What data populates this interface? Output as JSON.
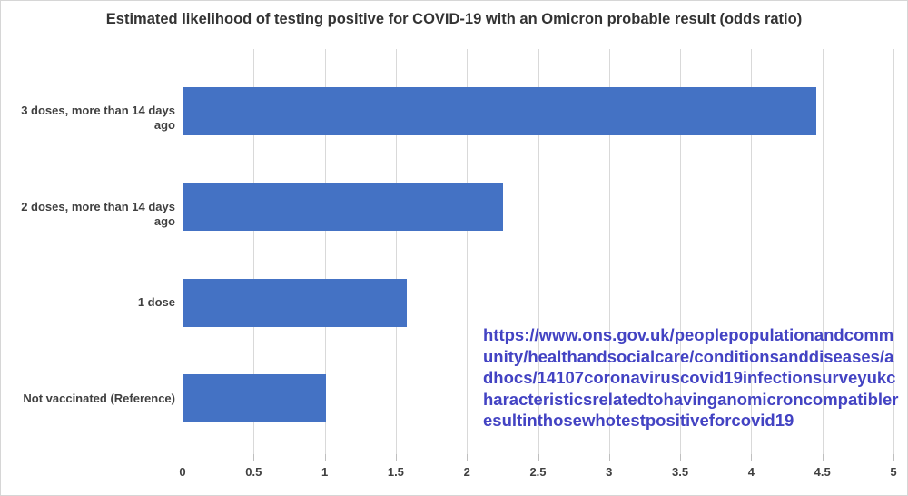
{
  "chart_data": {
    "type": "bar",
    "orientation": "horizontal",
    "title": "Estimated likelihood of testing positive for COVID-19 with an Omicron probable result (odds ratio)",
    "categories": [
      "3 doses, more than 14 days ago",
      "2 doses, more than 14 days ago",
      "1 dose",
      "Not vaccinated (Reference)"
    ],
    "values": [
      4.45,
      2.25,
      1.57,
      1.0
    ],
    "xlabel": "",
    "ylabel": "",
    "xlim": [
      0,
      5
    ],
    "x_ticks": [
      0,
      0.5,
      1,
      1.5,
      2,
      2.5,
      3,
      3.5,
      4,
      4.5,
      5
    ],
    "grid": true,
    "legend": false,
    "bar_color": "#4472c4",
    "gridline_color": "#d9d9d9",
    "tick_label_color": "#404040",
    "title_color": "#333333"
  },
  "annotation": {
    "source_url": "https://www.ons.gov.uk/peoplepopulationandcommunity/healthandsocialcare/conditionsanddiseases/adhocs/14107coronaviruscovid19infectionsurveyukcharacteristicsrelatedtohavinganomicroncompatibleresultinthosewhotestpositiveforcovid19",
    "url_color": "#4343c3"
  }
}
